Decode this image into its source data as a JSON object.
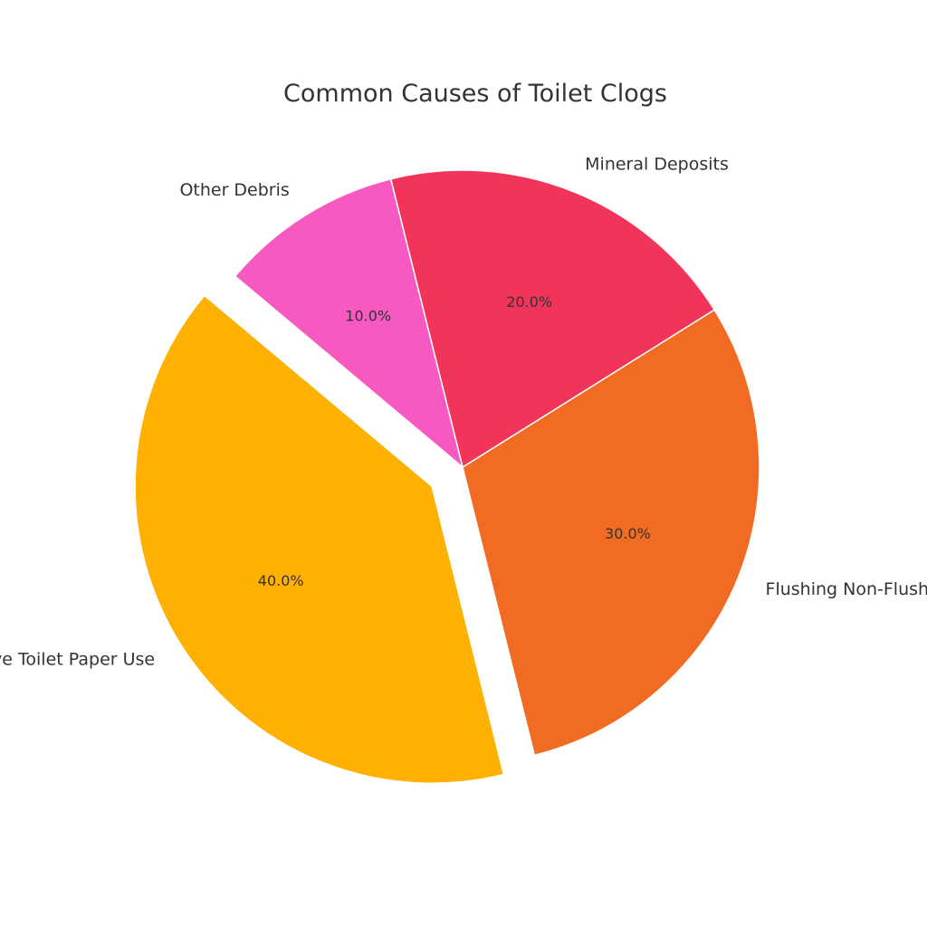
{
  "chart_data": {
    "type": "pie",
    "title": "Common Causes of Toilet Clogs",
    "categories": [
      "Excessive Toilet Paper Use",
      "Flushing Non-Flushables",
      "Mineral Deposits",
      "Other Debris"
    ],
    "values": [
      40,
      30,
      20,
      10
    ],
    "percent_labels": [
      "40.0%",
      "30.0%",
      "20.0%",
      "10.0%"
    ],
    "colors": [
      "#FFB000",
      "#F26B23",
      "#F2335A",
      "#F759C0"
    ],
    "exploded": [
      true,
      false,
      false,
      false
    ],
    "start_angle_deg": 140,
    "direction": "counterclockwise",
    "legend": "none"
  }
}
